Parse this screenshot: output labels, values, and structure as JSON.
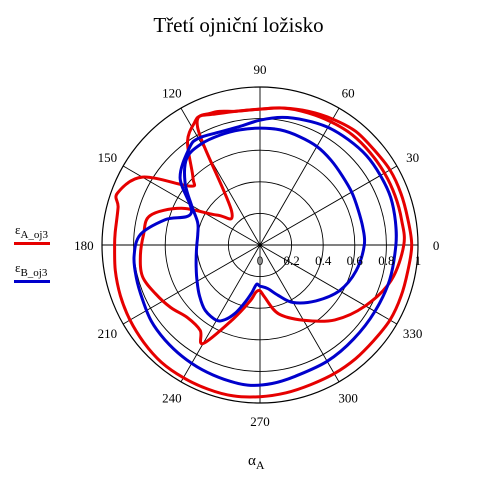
{
  "chart_data": {
    "type": "polar-line",
    "title": "Třetí ojniční ložisko",
    "angle_ticks": [
      "0",
      "30",
      "60",
      "90",
      "120",
      "150",
      "180",
      "210",
      "240",
      "270",
      "300",
      "330"
    ],
    "radial_ticks": [
      "0",
      "0.2",
      "0.4",
      "0.6",
      "0.8",
      "1"
    ],
    "rlim": [
      0,
      1
    ],
    "grid": true,
    "xlabel_symbol": "α",
    "xlabel_subscript": "A",
    "legend_position": "left",
    "series": [
      {
        "name_symbol": "ε",
        "name_subscript": "A_oj3",
        "color": "#e60000",
        "theta_deg": [
          0,
          10,
          20,
          30,
          40,
          50,
          60,
          70,
          80,
          90,
          100,
          110,
          115,
          118,
          125,
          135,
          140,
          150,
          160,
          165,
          175,
          180,
          190,
          200,
          210,
          220,
          230,
          240,
          250,
          260,
          270,
          280,
          290,
          300,
          310,
          320,
          330,
          340,
          350,
          360
        ],
        "r": [
          0.96,
          0.95,
          0.95,
          0.95,
          0.94,
          0.94,
          0.92,
          0.9,
          0.88,
          0.86,
          0.86,
          0.88,
          0.9,
          0.88,
          0.8,
          0.6,
          0.58,
          0.86,
          0.96,
          0.93,
          0.92,
          0.92,
          0.93,
          0.94,
          0.95,
          0.96,
          0.97,
          0.97,
          0.97,
          0.97,
          0.96,
          0.95,
          0.94,
          0.94,
          0.94,
          0.94,
          0.95,
          0.95,
          0.95,
          0.96
        ]
      },
      {
        "name_symbol": "ε",
        "name_subscript": "A_oj3",
        "color": "#e60000",
        "theta_deg": [
          0,
          10,
          20,
          30,
          40,
          50,
          60,
          70,
          80,
          90,
          100,
          110,
          118,
          130,
          145,
          155,
          165,
          175,
          185,
          195,
          205,
          215,
          225,
          235,
          240,
          250,
          260,
          265,
          270,
          275,
          285,
          300,
          315,
          330,
          345,
          360
        ],
        "r": [
          0.91,
          0.91,
          0.91,
          0.91,
          0.91,
          0.91,
          0.9,
          0.89,
          0.88,
          0.86,
          0.86,
          0.89,
          0.84,
          0.28,
          0.33,
          0.55,
          0.72,
          0.74,
          0.76,
          0.77,
          0.73,
          0.69,
          0.65,
          0.66,
          0.72,
          0.5,
          0.36,
          0.3,
          0.29,
          0.33,
          0.45,
          0.55,
          0.67,
          0.77,
          0.86,
          0.91
        ]
      },
      {
        "name_symbol": "ε",
        "name_subscript": "B_oj3",
        "color": "#0000cc",
        "theta_deg": [
          0,
          10,
          20,
          30,
          40,
          50,
          60,
          70,
          80,
          90,
          100,
          110,
          120,
          126,
          140,
          155,
          165,
          175,
          185,
          195,
          205,
          215,
          225,
          235,
          245,
          255,
          265,
          275,
          285,
          300,
          315,
          330,
          345,
          360
        ],
        "r": [
          0.86,
          0.87,
          0.88,
          0.88,
          0.88,
          0.87,
          0.86,
          0.84,
          0.82,
          0.79,
          0.76,
          0.76,
          0.78,
          0.76,
          0.66,
          0.48,
          0.62,
          0.76,
          0.8,
          0.81,
          0.82,
          0.84,
          0.85,
          0.86,
          0.87,
          0.88,
          0.89,
          0.88,
          0.86,
          0.85,
          0.84,
          0.84,
          0.85,
          0.86
        ]
      },
      {
        "name_symbol": "ε",
        "name_subscript": "B_oj3",
        "color": "#0000cc",
        "theta_deg": [
          0,
          10,
          20,
          30,
          40,
          50,
          60,
          70,
          80,
          90,
          100,
          110,
          120,
          130,
          140,
          150,
          160,
          170,
          180,
          190,
          200,
          210,
          220,
          230,
          240,
          245,
          250,
          255,
          260,
          265,
          270,
          280,
          290,
          300,
          315,
          330,
          345,
          360
        ],
        "r": [
          0.66,
          0.66,
          0.66,
          0.67,
          0.68,
          0.7,
          0.72,
          0.73,
          0.74,
          0.74,
          0.74,
          0.74,
          0.74,
          0.72,
          0.62,
          0.5,
          0.42,
          0.4,
          0.4,
          0.41,
          0.43,
          0.46,
          0.5,
          0.54,
          0.55,
          0.52,
          0.46,
          0.38,
          0.31,
          0.25,
          0.26,
          0.28,
          0.34,
          0.42,
          0.5,
          0.58,
          0.63,
          0.66
        ]
      }
    ]
  }
}
